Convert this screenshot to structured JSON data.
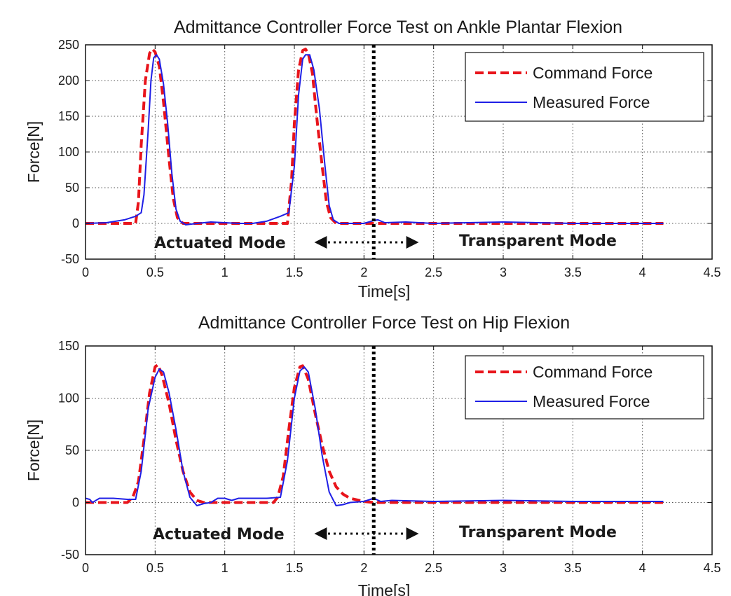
{
  "chart_data": [
    {
      "type": "line",
      "title": "Admittance Controller Force Test on Ankle Plantar Flexion",
      "xlabel": "Time[s]",
      "ylabel": "Force[N]",
      "xlim": [
        0,
        4.5
      ],
      "ylim": [
        -50,
        250
      ],
      "xticks": [
        0,
        0.5,
        1,
        1.5,
        2,
        2.5,
        3,
        3.5,
        4,
        4.5
      ],
      "yticks": [
        -50,
        0,
        50,
        100,
        150,
        200,
        250
      ],
      "grid": true,
      "legend_position": "top-right",
      "mode_line_x": 2.07,
      "series": [
        {
          "name": "Command Force",
          "color": "#e8141b",
          "dash": "dashed",
          "points": [
            [
              0,
              0
            ],
            [
              0.36,
              0
            ],
            [
              0.38,
              30
            ],
            [
              0.4,
              110
            ],
            [
              0.43,
              200
            ],
            [
              0.46,
              238
            ],
            [
              0.48,
              244
            ],
            [
              0.5,
              240
            ],
            [
              0.53,
              220
            ],
            [
              0.56,
              170
            ],
            [
              0.6,
              90
            ],
            [
              0.63,
              35
            ],
            [
              0.66,
              8
            ],
            [
              0.7,
              0
            ],
            [
              1.45,
              0
            ],
            [
              1.48,
              60
            ],
            [
              1.5,
              140
            ],
            [
              1.53,
              215
            ],
            [
              1.56,
              242
            ],
            [
              1.58,
              244
            ],
            [
              1.6,
              238
            ],
            [
              1.63,
              210
            ],
            [
              1.66,
              150
            ],
            [
              1.7,
              80
            ],
            [
              1.73,
              30
            ],
            [
              1.76,
              8
            ],
            [
              1.8,
              0
            ],
            [
              4.15,
              0
            ]
          ]
        },
        {
          "name": "Measured Force",
          "color": "#1f1fe6",
          "dash": "solid",
          "points": [
            [
              0,
              0
            ],
            [
              0.15,
              1
            ],
            [
              0.28,
              5
            ],
            [
              0.36,
              10
            ],
            [
              0.4,
              15
            ],
            [
              0.42,
              40
            ],
            [
              0.45,
              130
            ],
            [
              0.47,
              200
            ],
            [
              0.49,
              232
            ],
            [
              0.51,
              236
            ],
            [
              0.53,
              230
            ],
            [
              0.56,
              195
            ],
            [
              0.59,
              140
            ],
            [
              0.62,
              70
            ],
            [
              0.65,
              20
            ],
            [
              0.68,
              3
            ],
            [
              0.72,
              -2
            ],
            [
              0.8,
              0
            ],
            [
              0.9,
              2
            ],
            [
              1,
              1
            ],
            [
              1.1,
              0
            ],
            [
              1.2,
              0
            ],
            [
              1.3,
              3
            ],
            [
              1.4,
              10
            ],
            [
              1.46,
              15
            ],
            [
              1.5,
              80
            ],
            [
              1.53,
              180
            ],
            [
              1.56,
              230
            ],
            [
              1.58,
              236
            ],
            [
              1.61,
              236
            ],
            [
              1.64,
              215
            ],
            [
              1.68,
              160
            ],
            [
              1.72,
              80
            ],
            [
              1.75,
              25
            ],
            [
              1.78,
              5
            ],
            [
              1.82,
              0
            ],
            [
              1.9,
              0
            ],
            [
              2,
              0
            ],
            [
              2.07,
              4
            ],
            [
              2.1,
              5
            ],
            [
              2.15,
              1
            ],
            [
              2.3,
              2
            ],
            [
              2.5,
              0
            ],
            [
              3,
              2
            ],
            [
              3.5,
              0
            ],
            [
              4.15,
              0
            ]
          ]
        }
      ],
      "annotations": {
        "left": "Actuated Mode",
        "right": "Transparent Mode"
      }
    },
    {
      "type": "line",
      "title": "Admittance Controller Force Test on Hip Flexion",
      "xlabel": "Time[s]",
      "ylabel": "Force[N]",
      "xlim": [
        0,
        4.5
      ],
      "ylim": [
        -50,
        150
      ],
      "xticks": [
        0,
        0.5,
        1,
        1.5,
        2,
        2.5,
        3,
        3.5,
        4,
        4.5
      ],
      "yticks": [
        -50,
        0,
        50,
        100,
        150
      ],
      "grid": true,
      "legend_position": "top-right",
      "mode_line_x": 2.07,
      "series": [
        {
          "name": "Command Force",
          "color": "#e8141b",
          "dash": "dashed",
          "points": [
            [
              0,
              0
            ],
            [
              0.3,
              0
            ],
            [
              0.34,
              5
            ],
            [
              0.38,
              20
            ],
            [
              0.42,
              60
            ],
            [
              0.46,
              105
            ],
            [
              0.5,
              130
            ],
            [
              0.52,
              132
            ],
            [
              0.55,
              122
            ],
            [
              0.6,
              95
            ],
            [
              0.65,
              60
            ],
            [
              0.7,
              30
            ],
            [
              0.75,
              10
            ],
            [
              0.8,
              2
            ],
            [
              0.85,
              0
            ],
            [
              1.35,
              0
            ],
            [
              1.38,
              5
            ],
            [
              1.42,
              25
            ],
            [
              1.46,
              70
            ],
            [
              1.5,
              110
            ],
            [
              1.54,
              130
            ],
            [
              1.56,
              131
            ],
            [
              1.6,
              118
            ],
            [
              1.65,
              85
            ],
            [
              1.7,
              55
            ],
            [
              1.75,
              30
            ],
            [
              1.8,
              15
            ],
            [
              1.85,
              8
            ],
            [
              1.9,
              4
            ],
            [
              2,
              1
            ],
            [
              2.07,
              0
            ],
            [
              4.15,
              0
            ]
          ]
        },
        {
          "name": "Measured Force",
          "color": "#1f1fe6",
          "dash": "solid",
          "points": [
            [
              0,
              4
            ],
            [
              0.03,
              3
            ],
            [
              0.05,
              0
            ],
            [
              0.1,
              4
            ],
            [
              0.2,
              4
            ],
            [
              0.3,
              3
            ],
            [
              0.36,
              3
            ],
            [
              0.4,
              30
            ],
            [
              0.45,
              90
            ],
            [
              0.5,
              120
            ],
            [
              0.53,
              128
            ],
            [
              0.56,
              125
            ],
            [
              0.6,
              105
            ],
            [
              0.65,
              70
            ],
            [
              0.7,
              30
            ],
            [
              0.75,
              5
            ],
            [
              0.8,
              -3
            ],
            [
              0.85,
              -1
            ],
            [
              0.9,
              0
            ],
            [
              0.95,
              4
            ],
            [
              1,
              4
            ],
            [
              1.05,
              2
            ],
            [
              1.1,
              4
            ],
            [
              1.2,
              4
            ],
            [
              1.3,
              4
            ],
            [
              1.4,
              5
            ],
            [
              1.45,
              40
            ],
            [
              1.5,
              100
            ],
            [
              1.54,
              126
            ],
            [
              1.57,
              130
            ],
            [
              1.6,
              125
            ],
            [
              1.65,
              90
            ],
            [
              1.7,
              45
            ],
            [
              1.75,
              10
            ],
            [
              1.8,
              -3
            ],
            [
              1.85,
              -2
            ],
            [
              1.9,
              0
            ],
            [
              2,
              1
            ],
            [
              2.07,
              4
            ],
            [
              2.12,
              1
            ],
            [
              2.2,
              2
            ],
            [
              2.5,
              1
            ],
            [
              3,
              2
            ],
            [
              3.5,
              1
            ],
            [
              4.15,
              1
            ]
          ]
        }
      ],
      "annotations": {
        "left": "Actuated Mode",
        "right": "Transparent Mode"
      }
    }
  ]
}
